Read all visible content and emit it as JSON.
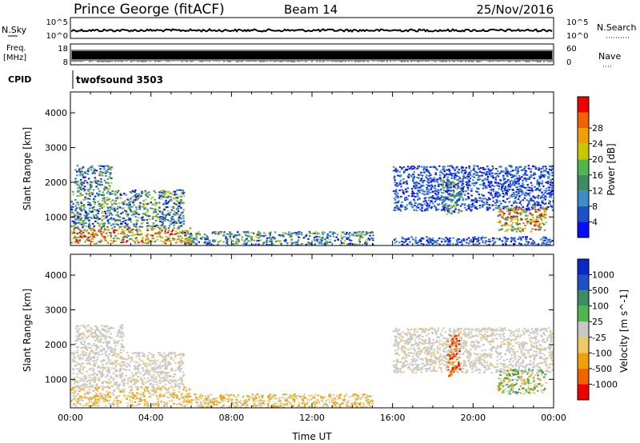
{
  "header": {
    "station": "Prince George (fitACF)",
    "beam": "Beam 14",
    "date": "25/Nov/2016"
  },
  "top_panels": {
    "nsky": {
      "label": "N.Sky",
      "left_ticks": [
        "10^5",
        "10^0"
      ],
      "right_label": "N.Search",
      "right_ticks": [
        "10^5",
        "10^0"
      ]
    },
    "freq": {
      "label_line1": "Freq.",
      "label_line2": "[MHz]",
      "left_ticks": [
        "18",
        "8"
      ],
      "right_label": "Nave",
      "right_ticks": [
        "60",
        "0"
      ]
    },
    "cpid": {
      "label": "CPID",
      "program": "twofsound 3503"
    }
  },
  "chart_data": [
    {
      "type": "heatmap",
      "name": "power",
      "ylabel": "Slant Range [km]",
      "ylim": [
        180,
        4600
      ],
      "yticks": [
        1000,
        2000,
        3000,
        4000
      ],
      "xlabel": "",
      "xlim_hours": [
        0,
        24
      ],
      "colorbar_label": "Power [dB]",
      "colorbar_ticks": [
        "4",
        "8",
        "12",
        "16",
        "20",
        "24",
        "28"
      ],
      "colorbar_colors": [
        "#0a0aff",
        "#1e50c8",
        "#3c8cc8",
        "#3c8c64",
        "#50b450",
        "#c8c800",
        "#f0a000",
        "#f06400",
        "#f00000"
      ],
      "features": [
        {
          "t0": 0.0,
          "t1": 6.0,
          "r0": 250,
          "r1": 700,
          "level": "high"
        },
        {
          "t0": 0.0,
          "t1": 5.6,
          "r0": 700,
          "r1": 1800,
          "level": "medium"
        },
        {
          "t0": 0.2,
          "t1": 2.0,
          "r0": 1800,
          "r1": 2500,
          "level": "medium"
        },
        {
          "t0": 5.6,
          "t1": 15.0,
          "r0": 200,
          "r1": 600,
          "level": "medium"
        },
        {
          "t0": 16.0,
          "t1": 24.0,
          "r0": 1200,
          "r1": 2500,
          "level": "low"
        },
        {
          "t0": 18.4,
          "t1": 19.4,
          "r0": 1100,
          "r1": 2100,
          "level": "medium"
        },
        {
          "t0": 21.2,
          "t1": 23.6,
          "r0": 600,
          "r1": 1300,
          "level": "high"
        },
        {
          "t0": 16.0,
          "t1": 24.0,
          "r0": 200,
          "r1": 450,
          "level": "low"
        }
      ]
    },
    {
      "type": "heatmap",
      "name": "velocity",
      "ylabel": "Slant Range [km]",
      "ylim": [
        180,
        4600
      ],
      "yticks": [
        1000,
        2000,
        3000,
        4000
      ],
      "xlabel": "Time UT",
      "xlim_hours": [
        0,
        24
      ],
      "xtick_labels": [
        "00:00",
        "04:00",
        "08:00",
        "12:00",
        "16:00",
        "20:00",
        "00:00"
      ],
      "colorbar_label": "Velocity [m s^-1]",
      "colorbar_ticks": [
        "-1000",
        "-500",
        "-100",
        "-25",
        "25",
        "100",
        "500",
        "1000"
      ],
      "colorbar_colors": [
        "#f00000",
        "#f06400",
        "#f0a000",
        "#f0c864",
        "#c8c8c8",
        "#50b450",
        "#3c8c64",
        "#1e50c8",
        "#0a28c8"
      ],
      "features": [
        {
          "t0": 0.0,
          "t1": 6.0,
          "r0": 250,
          "r1": 800,
          "level": "toward"
        },
        {
          "t0": 0.0,
          "t1": 5.6,
          "r0": 800,
          "r1": 1800,
          "level": "neutral"
        },
        {
          "t0": 0.2,
          "t1": 2.6,
          "r0": 1800,
          "r1": 2600,
          "level": "neutral"
        },
        {
          "t0": 5.6,
          "t1": 15.0,
          "r0": 200,
          "r1": 600,
          "level": "toward"
        },
        {
          "t0": 16.0,
          "t1": 24.0,
          "r0": 1200,
          "r1": 2500,
          "level": "neutral"
        },
        {
          "t0": 18.7,
          "t1": 19.3,
          "r0": 1100,
          "r1": 2300,
          "level": "strong-toward"
        },
        {
          "t0": 21.2,
          "t1": 23.6,
          "r0": 600,
          "r1": 1300,
          "level": "mixed"
        }
      ]
    }
  ]
}
